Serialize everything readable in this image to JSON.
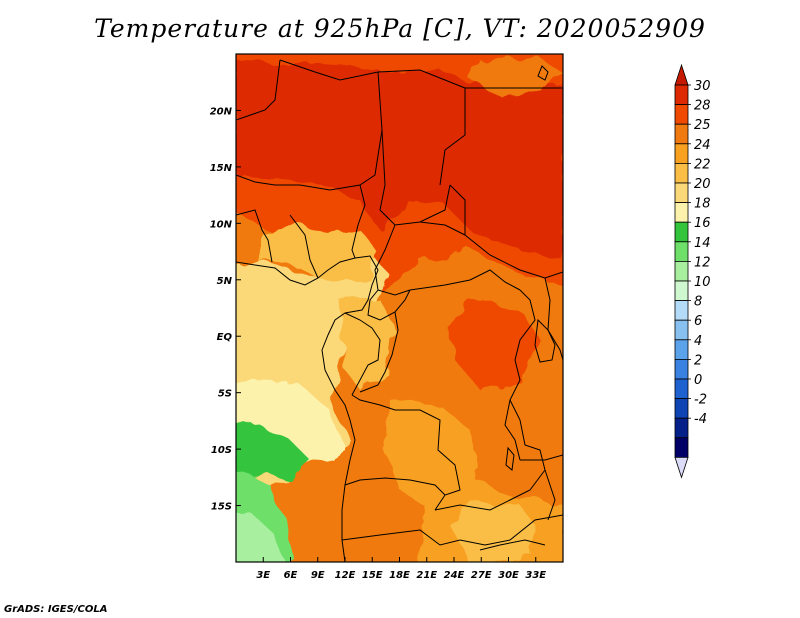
{
  "title": "Temperature at 925hPa [C], VT: 2020052909",
  "credit": "GrADS: IGES/COLA",
  "map": {
    "lon_range": [
      0,
      36
    ],
    "lat_range": [
      -20,
      25
    ],
    "x_ticks": [
      {
        "lon": 3,
        "label": "3E"
      },
      {
        "lon": 6,
        "label": "6E"
      },
      {
        "lon": 9,
        "label": "9E"
      },
      {
        "lon": 12,
        "label": "12E"
      },
      {
        "lon": 15,
        "label": "15E"
      },
      {
        "lon": 18,
        "label": "18E"
      },
      {
        "lon": 21,
        "label": "21E"
      },
      {
        "lon": 24,
        "label": "24E"
      },
      {
        "lon": 27,
        "label": "27E"
      },
      {
        "lon": 30,
        "label": "30E"
      },
      {
        "lon": 33,
        "label": "33E"
      }
    ],
    "y_ticks": [
      {
        "lat": 20,
        "label": "20N"
      },
      {
        "lat": 15,
        "label": "15N"
      },
      {
        "lat": 10,
        "label": "10N"
      },
      {
        "lat": 5,
        "label": "5N"
      },
      {
        "lat": 0,
        "label": "EQ"
      },
      {
        "lat": -5,
        "label": "5S"
      },
      {
        "lat": -10,
        "label": "10S"
      },
      {
        "lat": -15,
        "label": "15S"
      }
    ]
  },
  "colorbar": {
    "labels": [
      "30",
      "28",
      "25",
      "24",
      "22",
      "20",
      "18",
      "16",
      "14",
      "12",
      "10",
      "8",
      "6",
      "4",
      "2",
      "0",
      "-2",
      "-4"
    ],
    "colors": [
      "#dd2a02",
      "#ef4a00",
      "#f07a10",
      "#f8a020",
      "#fabe46",
      "#fbd878",
      "#fcf2ac",
      "#34c43c",
      "#6ee06a",
      "#a8f0a0",
      "#d0f8d0",
      "#b4dcf8",
      "#88c0f0",
      "#5aa2ea",
      "#3a82e2",
      "#1e62d0",
      "#0e44b4",
      "#06208a",
      "#000066"
    ],
    "top_arrow_color": "#c61a00",
    "bottom_arrow_color": "#dcdcf8"
  }
}
